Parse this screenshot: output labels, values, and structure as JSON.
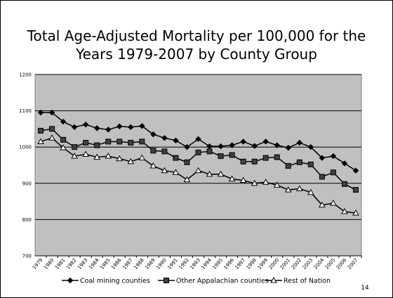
{
  "chart_data": {
    "type": "line",
    "title": "Total Age-Adjusted Mortality per 100,000 for the Years 1979-2007 by County Group",
    "categories": [
      "1979",
      "1980",
      "1981",
      "1982",
      "1983",
      "1984",
      "1985",
      "1986",
      "1987",
      "1988",
      "1989",
      "1990",
      "1991",
      "1992",
      "1993",
      "1994",
      "1995",
      "1996",
      "1997",
      "1998",
      "1999",
      "2000",
      "2001",
      "2002",
      "2003",
      "2004",
      "2005",
      "2006",
      "2007"
    ],
    "series": [
      {
        "name": "Coal mining counties",
        "color": "#000000",
        "marker": "diamond",
        "values": [
          1095,
          1095,
          1070,
          1055,
          1062,
          1052,
          1048,
          1057,
          1055,
          1058,
          1035,
          1025,
          1018,
          1000,
          1022,
          1002,
          1002,
          1005,
          1015,
          1003,
          1015,
          1005,
          998,
          1012,
          1000,
          970,
          975,
          955,
          935
        ]
      },
      {
        "name": "Other Appalachian counties",
        "color": "#404040",
        "marker": "square",
        "values": [
          1045,
          1050,
          1020,
          1000,
          1012,
          1005,
          1015,
          1015,
          1012,
          1015,
          990,
          988,
          970,
          958,
          985,
          988,
          975,
          978,
          960,
          960,
          970,
          972,
          948,
          958,
          952,
          918,
          930,
          898,
          882
        ]
      },
      {
        "name": "Rest of Nation",
        "color": "#000000",
        "marker": "triangle",
        "values": [
          1015,
          1025,
          998,
          975,
          980,
          972,
          975,
          968,
          960,
          970,
          948,
          935,
          930,
          910,
          935,
          925,
          925,
          912,
          908,
          900,
          903,
          895,
          882,
          885,
          875,
          840,
          845,
          822,
          818
        ]
      }
    ],
    "ylim": [
      700,
      1200
    ],
    "yticks": [
      700,
      800,
      900,
      1000,
      1100,
      1200
    ],
    "grid": true,
    "plot_background": "#c0c0c0",
    "legend": "bottom"
  },
  "slide_number": "14"
}
